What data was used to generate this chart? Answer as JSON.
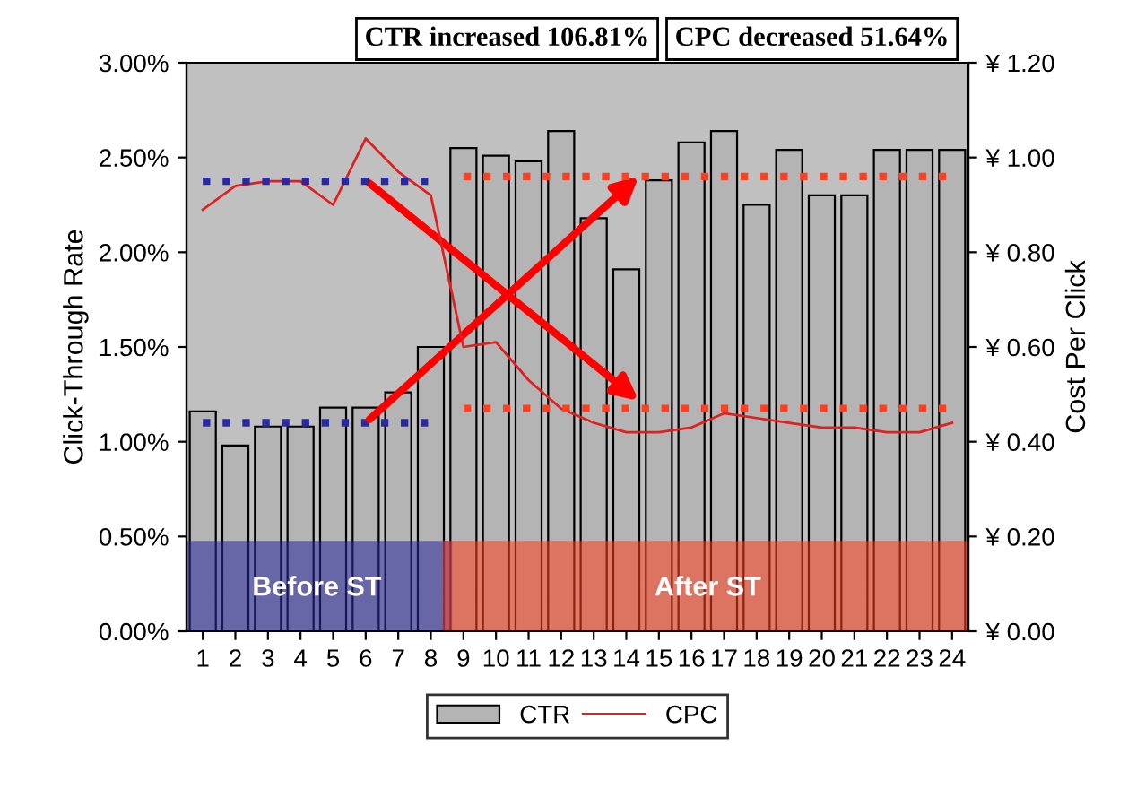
{
  "chart_data": {
    "type": "bar",
    "xlabel": null,
    "ylabel": "Click-Through Rate",
    "y2label": "Cost Per Click",
    "categories": [
      "1",
      "2",
      "3",
      "4",
      "5",
      "6",
      "7",
      "8",
      "9",
      "10",
      "11",
      "12",
      "13",
      "14",
      "15",
      "16",
      "17",
      "18",
      "19",
      "20",
      "21",
      "22",
      "23",
      "24"
    ],
    "series": [
      {
        "name": "CTR",
        "color": "#b4b4b4",
        "values": [
          1.16,
          0.98,
          1.08,
          1.08,
          1.18,
          1.18,
          1.26,
          1.5,
          2.55,
          2.51,
          2.48,
          2.64,
          2.18,
          1.91,
          2.38,
          2.58,
          2.64,
          2.25,
          2.54,
          2.3,
          2.3,
          2.54,
          2.54,
          2.54
        ]
      },
      {
        "name": "CPC",
        "type": "line",
        "axis": "y2",
        "color": "#e02020",
        "values": [
          0.89,
          0.94,
          0.95,
          0.95,
          0.9,
          1.04,
          0.97,
          0.92,
          0.6,
          0.61,
          0.53,
          0.47,
          0.44,
          0.42,
          0.42,
          0.43,
          0.46,
          0.45,
          0.44,
          0.43,
          0.43,
          0.42,
          0.42,
          0.44
        ]
      },
      {
        "type": "line",
        "axis": "y2",
        "color": "#2a2aa0",
        "line_style": "dotted",
        "values": [
          0.95,
          0.95,
          0.95,
          0.95,
          0.95,
          0.95,
          0.95,
          0.95,
          null,
          null,
          null,
          null,
          null,
          null,
          null,
          null,
          null,
          null,
          null,
          null,
          null,
          null,
          null,
          null
        ]
      },
      {
        "type": "line",
        "color": "#2a2aa0",
        "line_style": "dotted",
        "values": [
          1.1,
          1.1,
          1.1,
          1.1,
          1.1,
          1.1,
          1.1,
          1.1,
          null,
          null,
          null,
          null,
          null,
          null,
          null,
          null,
          null,
          null,
          null,
          null,
          null,
          null,
          null,
          null
        ]
      },
      {
        "type": "line",
        "axis": "y2",
        "color": "#ff4020",
        "line_style": "dotted",
        "values": [
          null,
          null,
          null,
          null,
          null,
          null,
          null,
          null,
          0.96,
          0.96,
          0.96,
          0.96,
          0.96,
          0.96,
          0.96,
          0.96,
          0.96,
          0.96,
          0.96,
          0.96,
          0.96,
          0.96,
          0.96,
          0.96
        ]
      },
      {
        "type": "line",
        "axis": "y2",
        "color": "#ff4020",
        "line_style": "dotted",
        "values": [
          null,
          null,
          null,
          null,
          null,
          null,
          null,
          null,
          0.47,
          0.47,
          0.47,
          0.47,
          0.47,
          0.47,
          0.47,
          0.47,
          0.47,
          0.47,
          0.47,
          0.47,
          0.47,
          0.47,
          0.47,
          0.47
        ]
      }
    ],
    "ylim": [
      0,
      3
    ],
    "yticks": [
      {
        "value": 0,
        "label": "0.00%"
      },
      {
        "value": 0.5,
        "label": "0.50%"
      },
      {
        "value": 1,
        "label": "1.00%"
      },
      {
        "value": 1.5,
        "label": "1.50%"
      },
      {
        "value": 2,
        "label": "2.00%"
      },
      {
        "value": 2.5,
        "label": "2.50%"
      },
      {
        "value": 3,
        "label": "3.00%"
      }
    ],
    "y2lim": [
      0,
      1.2
    ],
    "y2ticks": [
      {
        "value": 0,
        "label": "¥ 0.00"
      },
      {
        "value": 0.2,
        "label": "¥ 0.20"
      },
      {
        "value": 0.4,
        "label": "¥ 0.40"
      },
      {
        "value": 0.6,
        "label": "¥ 0.60"
      },
      {
        "value": 0.8,
        "label": "¥ 0.80"
      },
      {
        "value": 1,
        "label": "¥ 1.00"
      },
      {
        "value": 1.2,
        "label": "¥ 1.20"
      }
    ],
    "bands": [
      {
        "axis": "x",
        "from": "1",
        "to": "8",
        "label": "Before ST",
        "color": "#2a2aa0"
      },
      {
        "axis": "x",
        "from": "9",
        "to": "24",
        "label": "After ST",
        "color": "#ff4020"
      }
    ],
    "annotations": [
      "CTR increased 106.81%",
      "CPC decreased 51.64%"
    ],
    "grid": false,
    "legend": "bottom"
  }
}
